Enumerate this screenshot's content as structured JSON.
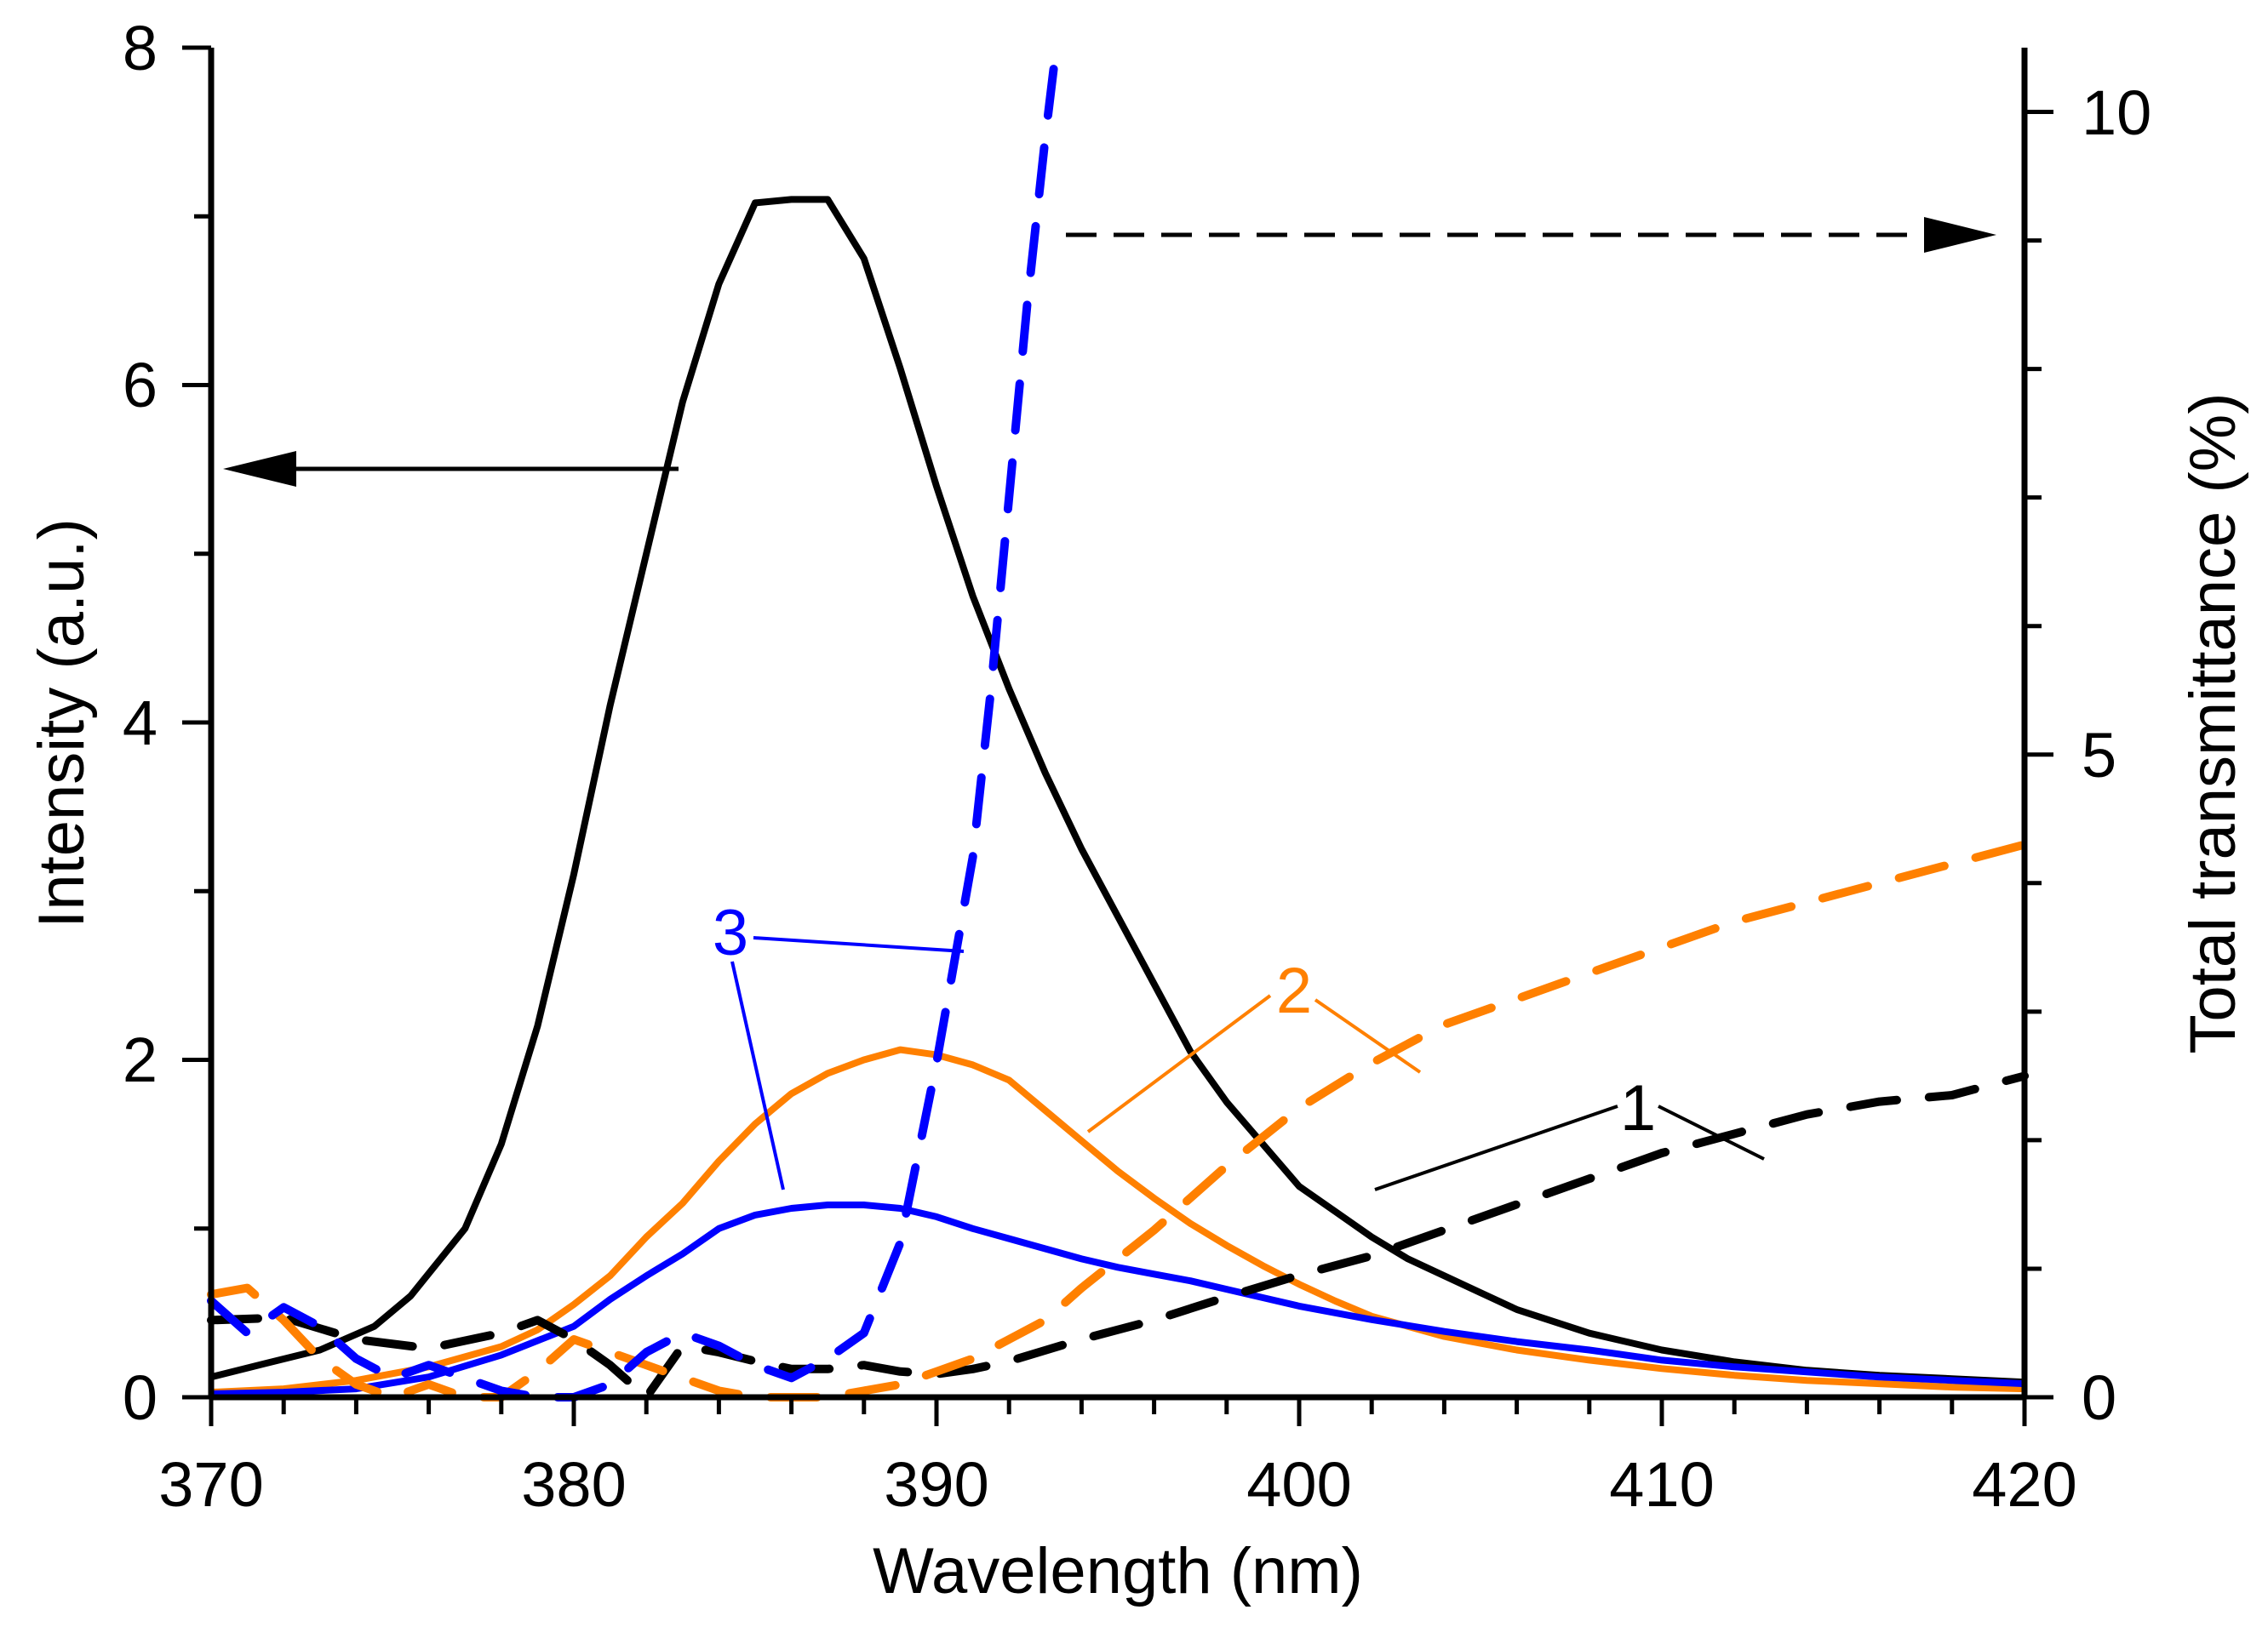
{
  "chart_data": {
    "type": "line",
    "title": "",
    "xlabel": "Wavelength (nm)",
    "ylabel_left": "Intensity (a.u.)",
    "ylabel_right": "Total transmittance (%)",
    "xlim": [
      370,
      420
    ],
    "ylim_left": [
      0,
      8
    ],
    "ylim_right": [
      0,
      10.5
    ],
    "x_ticks": [
      "370",
      "380",
      "390",
      "400",
      "410",
      "420"
    ],
    "y_left_ticks": [
      "0",
      "2",
      "4",
      "6",
      "8"
    ],
    "y_right_ticks": [
      "0",
      "5",
      "10"
    ],
    "grid": false,
    "legend": "none",
    "series": [
      {
        "label": "1",
        "axis": "left",
        "style": "solid",
        "color": "#000000",
        "x": [
          370,
          371.5,
          373,
          374.5,
          375.5,
          377,
          378,
          379,
          380,
          381,
          382,
          383,
          384,
          385,
          386,
          387,
          388,
          389,
          390,
          391,
          392,
          393,
          394,
          395,
          396,
          397,
          398,
          399,
          400,
          401,
          402,
          403,
          404,
          405,
          406,
          407,
          408,
          410,
          412,
          414,
          416,
          418,
          420
        ],
        "y": [
          0.12,
          0.2,
          0.28,
          0.42,
          0.6,
          1.0,
          1.5,
          2.2,
          3.1,
          4.1,
          5.0,
          5.9,
          6.6,
          7.08,
          7.1,
          7.1,
          6.75,
          6.1,
          5.4,
          4.75,
          4.2,
          3.7,
          3.25,
          2.85,
          2.45,
          2.05,
          1.75,
          1.5,
          1.25,
          1.1,
          0.95,
          0.82,
          0.72,
          0.62,
          0.52,
          0.45,
          0.38,
          0.28,
          0.21,
          0.16,
          0.13,
          0.11,
          0.09
        ]
      },
      {
        "label": "2",
        "axis": "left",
        "style": "solid",
        "color": "#ff8000",
        "x": [
          370,
          372,
          374,
          376,
          378,
          379,
          380,
          381,
          382,
          383,
          384,
          385,
          386,
          387,
          388,
          389,
          390,
          391,
          392,
          393,
          394,
          395,
          396,
          397,
          398,
          399,
          400,
          401,
          402,
          404,
          406,
          408,
          410,
          412,
          414,
          416,
          418,
          420
        ],
        "y": [
          0.03,
          0.05,
          0.1,
          0.18,
          0.3,
          0.4,
          0.55,
          0.72,
          0.95,
          1.15,
          1.4,
          1.62,
          1.8,
          1.92,
          2.0,
          2.06,
          2.03,
          1.97,
          1.88,
          1.7,
          1.52,
          1.34,
          1.18,
          1.03,
          0.9,
          0.78,
          0.67,
          0.57,
          0.48,
          0.36,
          0.28,
          0.22,
          0.17,
          0.13,
          0.1,
          0.08,
          0.06,
          0.05
        ]
      },
      {
        "label": "3",
        "axis": "left",
        "style": "solid",
        "color": "#0000ff",
        "x": [
          370,
          372,
          374,
          376,
          378,
          380,
          381,
          382,
          383,
          384,
          385,
          386,
          387,
          388,
          389,
          390,
          391,
          392,
          393,
          394,
          395,
          396,
          397,
          398,
          399,
          400,
          402,
          404,
          406,
          408,
          410,
          412,
          414,
          416,
          418,
          420
        ],
        "y": [
          0.02,
          0.03,
          0.05,
          0.12,
          0.25,
          0.42,
          0.58,
          0.72,
          0.85,
          1.0,
          1.08,
          1.12,
          1.14,
          1.14,
          1.12,
          1.07,
          1.0,
          0.94,
          0.88,
          0.82,
          0.77,
          0.73,
          0.69,
          0.64,
          0.59,
          0.54,
          0.46,
          0.39,
          0.33,
          0.28,
          0.22,
          0.18,
          0.15,
          0.12,
          0.1,
          0.08
        ]
      },
      {
        "label": "1",
        "axis": "right",
        "style": "dashed",
        "color": "#000000",
        "x": [
          370,
          372,
          374,
          376,
          378,
          379,
          380,
          381,
          382,
          383,
          384,
          385,
          386,
          387,
          388,
          389,
          390,
          391,
          392,
          394,
          396,
          398,
          400,
          402,
          404,
          406,
          408,
          410,
          412,
          414,
          416,
          418,
          420
        ],
        "y": [
          0.6,
          0.62,
          0.45,
          0.38,
          0.5,
          0.6,
          0.45,
          0.25,
          0.0,
          0.4,
          0.35,
          0.28,
          0.22,
          0.22,
          0.25,
          0.2,
          0.18,
          0.22,
          0.28,
          0.45,
          0.6,
          0.78,
          0.95,
          1.1,
          1.3,
          1.5,
          1.7,
          1.9,
          2.05,
          2.2,
          2.3,
          2.35,
          2.5
        ]
      },
      {
        "label": "2",
        "axis": "right",
        "style": "dashed",
        "color": "#ff8000",
        "x": [
          370,
          371,
          372,
          373,
          374,
          375,
          376,
          377,
          378,
          379,
          380,
          381,
          382,
          383,
          384,
          385,
          386,
          387,
          388,
          389,
          390,
          391,
          392,
          393,
          394,
          396,
          398,
          400,
          402,
          404,
          406,
          408,
          410,
          412,
          414,
          416,
          418,
          420
        ],
        "y": [
          0.8,
          0.85,
          0.6,
          0.3,
          0.1,
          0.0,
          0.1,
          0.0,
          0.0,
          0.2,
          0.45,
          0.35,
          0.25,
          0.15,
          0.05,
          0.0,
          0.0,
          0.0,
          0.05,
          0.1,
          0.2,
          0.3,
          0.45,
          0.6,
          0.85,
          1.3,
          1.8,
          2.25,
          2.6,
          2.9,
          3.1,
          3.3,
          3.5,
          3.7,
          3.85,
          4.0,
          4.15,
          4.3
        ]
      },
      {
        "label": "3",
        "axis": "right",
        "style": "dashed",
        "color": "#0000ff",
        "x": [
          370,
          371,
          372,
          373,
          374,
          375,
          376,
          377,
          378,
          379,
          380,
          381,
          382,
          383,
          384,
          385,
          386,
          387,
          388,
          389,
          390,
          391,
          391.5,
          392,
          392.5,
          393,
          393.3
        ],
        "y": [
          0.75,
          0.5,
          0.7,
          0.55,
          0.3,
          0.15,
          0.25,
          0.15,
          0.05,
          0.0,
          0.0,
          0.1,
          0.35,
          0.5,
          0.4,
          0.25,
          0.15,
          0.3,
          0.5,
          1.2,
          2.6,
          4.2,
          5.5,
          7.0,
          8.5,
          9.8,
          10.5
        ]
      }
    ],
    "annotations": [
      {
        "text": "1",
        "color": "#000000"
      },
      {
        "text": "2",
        "color": "#ff8000"
      },
      {
        "text": "3",
        "color": "#0000ff"
      }
    ]
  }
}
